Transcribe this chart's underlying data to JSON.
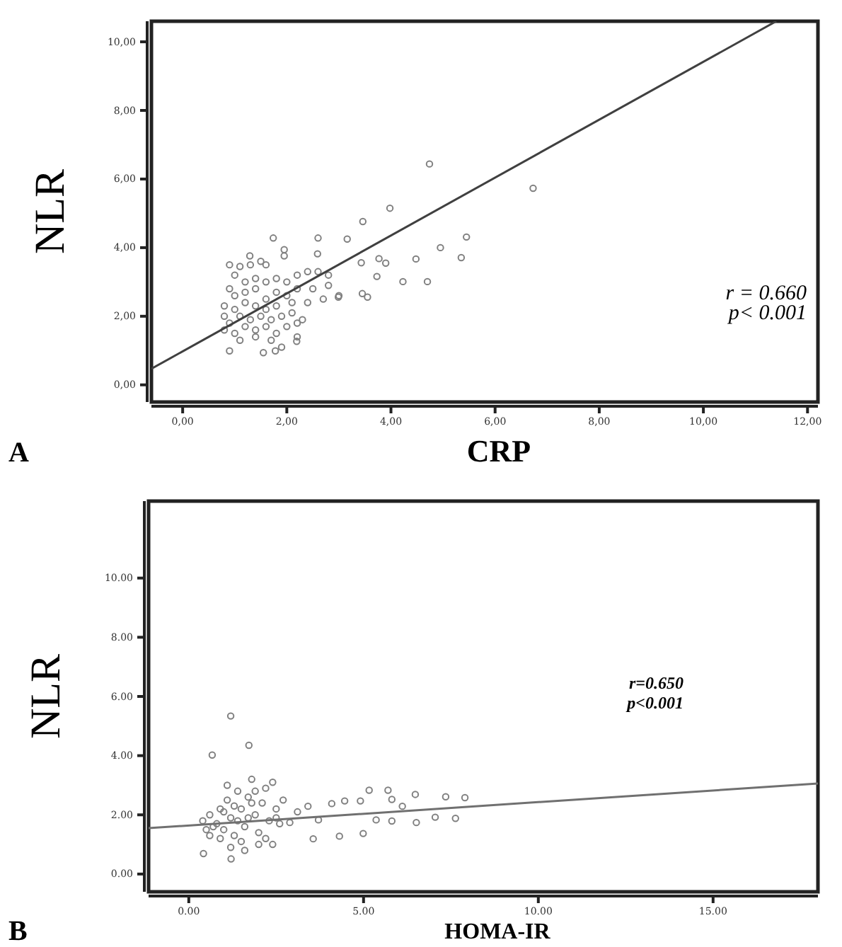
{
  "chart_data": [
    {
      "type": "scatter",
      "xlabel": "CRP",
      "ylabel": "NLR",
      "xlim": [
        -0.6,
        12.2
      ],
      "ylim": [
        -0.5,
        10.6
      ],
      "xticks": [
        {
          "value": 0,
          "label": "0,00"
        },
        {
          "value": 2,
          "label": "2,00"
        },
        {
          "value": 4,
          "label": "4,00"
        },
        {
          "value": 6,
          "label": "6,00"
        },
        {
          "value": 8,
          "label": "8,00"
        },
        {
          "value": 10,
          "label": "10,00"
        },
        {
          "value": 12,
          "label": "12,00"
        }
      ],
      "yticks": [
        {
          "value": 0,
          "label": "0,00"
        },
        {
          "value": 2,
          "label": "2,00"
        },
        {
          "value": 4,
          "label": "4,00"
        },
        {
          "value": 6,
          "label": "6,00"
        },
        {
          "value": 8,
          "label": "8,00"
        },
        {
          "value": 10,
          "label": "10,00"
        }
      ],
      "annotations": [
        "A",
        "r = 0.660",
        "p< 0.001"
      ],
      "series": [
        {
          "marker": "circle",
          "color": "#808080",
          "x": [
            4.74,
            6.73,
            3.98,
            3.46,
            5.45,
            4.95,
            5.35,
            4.48,
            4.23,
            4.7,
            3.9,
            3.73,
            2.6,
            1.74,
            3.16,
            2.59,
            1.95,
            1.95,
            1.29,
            3.45,
            3.55,
            3.43,
            3.77,
            2.99,
            1.55,
            1.78,
            0.9,
            2.19,
            0.9,
            1.0,
            1.1,
            1.3,
            1.5,
            1.6,
            1.2,
            1.4,
            1.6,
            1.8,
            2.0,
            2.2,
            2.4,
            2.6,
            2.8,
            0.9,
            1.0,
            1.2,
            1.4,
            1.6,
            1.8,
            2.0,
            2.2,
            2.5,
            2.8,
            3.0,
            0.8,
            1.0,
            1.2,
            1.4,
            1.6,
            1.8,
            2.1,
            2.4,
            2.7,
            0.8,
            0.9,
            1.1,
            1.3,
            1.5,
            1.7,
            1.9,
            2.1,
            2.3,
            0.8,
            1.0,
            1.2,
            1.4,
            1.6,
            1.8,
            2.0,
            2.2,
            1.1,
            1.4,
            1.7,
            1.9,
            2.2
          ],
          "values": [
            6.44,
            5.73,
            5.15,
            4.76,
            4.31,
            4.0,
            3.71,
            3.67,
            3.01,
            3.01,
            3.55,
            3.16,
            4.28,
            4.28,
            4.25,
            3.82,
            3.94,
            3.76,
            3.76,
            2.66,
            2.56,
            3.56,
            3.68,
            2.56,
            0.94,
            0.99,
            0.99,
            1.27,
            3.5,
            3.2,
            3.45,
            3.5,
            3.6,
            3.5,
            3.0,
            3.1,
            3.0,
            3.1,
            3.0,
            3.2,
            3.3,
            3.3,
            3.2,
            2.8,
            2.6,
            2.7,
            2.8,
            2.5,
            2.7,
            2.6,
            2.8,
            2.8,
            2.9,
            2.6,
            2.3,
            2.2,
            2.4,
            2.3,
            2.2,
            2.3,
            2.4,
            2.4,
            2.5,
            2.0,
            1.8,
            2.0,
            1.9,
            2.0,
            1.9,
            2.0,
            2.1,
            1.9,
            1.6,
            1.5,
            1.7,
            1.6,
            1.7,
            1.5,
            1.7,
            1.8,
            1.3,
            1.4,
            1.3,
            1.1,
            1.4
          ]
        },
        {
          "type": "line",
          "color": "#404040",
          "x": [
            -0.6,
            11.4
          ],
          "values": [
            0.47,
            10.6
          ]
        }
      ]
    },
    {
      "type": "scatter",
      "xlabel": "HOMA-IR",
      "ylabel": "NLR",
      "xlim": [
        -1.15,
        18.0
      ],
      "ylim": [
        -0.6,
        12.6
      ],
      "xticks": [
        {
          "value": 0,
          "label": "0.00"
        },
        {
          "value": 5,
          "label": "5.00"
        },
        {
          "value": 10,
          "label": "10.00"
        },
        {
          "value": 15,
          "label": "15.00"
        }
      ],
      "yticks": [
        {
          "value": 0,
          "label": "0.00"
        },
        {
          "value": 2,
          "label": "2.00"
        },
        {
          "value": 4,
          "label": "4.00"
        },
        {
          "value": 6,
          "label": "6.00"
        },
        {
          "value": 8,
          "label": "8.00"
        },
        {
          "value": 10,
          "label": "10.00"
        }
      ],
      "annotations": [
        "B",
        "r=0.650",
        "p<0.001"
      ],
      "series": [
        {
          "marker": "circle",
          "color": "#808080",
          "x": [
            1.2,
            1.72,
            0.67,
            0.42,
            1.21,
            5.16,
            5.7,
            6.48,
            7.35,
            7.9,
            7.63,
            7.05,
            6.51,
            5.81,
            5.36,
            4.99,
            4.31,
            3.56,
            4.09,
            4.46,
            4.91,
            5.81,
            6.11,
            3.41,
            3.71,
            3.11,
            2.89,
            0.4,
            0.5,
            0.6,
            0.8,
            0.9,
            1.0,
            1.1,
            1.2,
            1.3,
            1.4,
            1.5,
            1.6,
            1.7,
            1.8,
            1.9,
            2.0,
            2.1,
            2.2,
            2.3,
            2.4,
            2.5,
            2.6,
            2.7,
            0.6,
            0.9,
            1.1,
            1.3,
            1.5,
            1.7,
            1.9,
            2.2,
            2.5,
            1.2,
            1.6,
            2.0,
            2.4,
            0.7,
            1.0,
            1.4,
            1.8
          ],
          "values": [
            5.34,
            4.35,
            4.02,
            0.69,
            0.51,
            2.83,
            2.83,
            2.69,
            2.61,
            2.58,
            1.88,
            1.92,
            1.74,
            1.79,
            1.83,
            1.37,
            1.28,
            1.19,
            2.38,
            2.47,
            2.47,
            2.52,
            2.29,
            2.29,
            1.83,
            2.1,
            1.74,
            1.8,
            1.5,
            1.3,
            1.7,
            2.2,
            1.5,
            2.5,
            1.9,
            1.3,
            2.8,
            2.2,
            1.6,
            2.6,
            3.2,
            2.0,
            1.4,
            2.4,
            2.9,
            1.8,
            3.1,
            2.2,
            1.7,
            2.5,
            2.0,
            1.2,
            3.0,
            2.3,
            1.1,
            1.9,
            2.8,
            1.2,
            1.9,
            0.9,
            0.8,
            1.0,
            1.0,
            1.6,
            2.1,
            1.8,
            2.4
          ]
        },
        {
          "type": "line",
          "color": "#707070",
          "x": [
            -1.15,
            18.0
          ],
          "values": [
            1.55,
            3.06
          ]
        }
      ]
    }
  ]
}
